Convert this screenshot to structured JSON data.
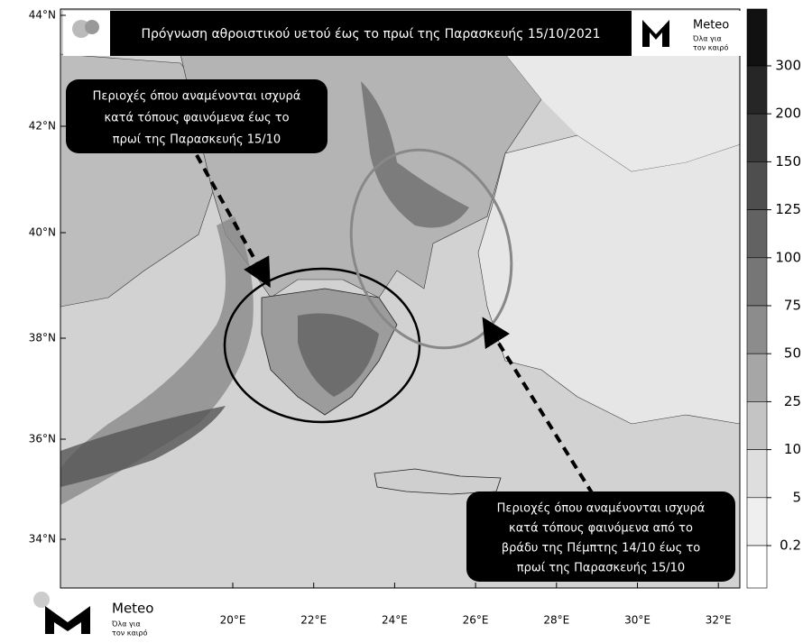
{
  "header": {
    "title": "Πρόγνωση αθροιστικού υετού έως το πρωί της Παρασκευής 15/10/2021",
    "logo": {
      "name": "Meteo",
      "tagline": [
        "Όλα για",
        "τον καιρό"
      ]
    }
  },
  "annotations": [
    {
      "lines": [
        "Περιοχές όπου αναμένονται ισχυρά",
        "κατά τόπους φαινόμενα έως το",
        "πρωί της Παρασκευής 15/10"
      ]
    },
    {
      "lines": [
        "Περιοχές όπου αναμένονται ισχυρά",
        "κατά τόπους φαινόμενα  από το",
        "βράδυ της Πέμπτης 14/10 έως το",
        "πρωί της Παρασκευής 15/10"
      ]
    }
  ],
  "axes": {
    "lat_labels": [
      "44°N",
      "42°N",
      "40°N",
      "38°N",
      "36°N",
      "34°N"
    ],
    "lon_labels": [
      "20°E",
      "22°E",
      "24°E",
      "26°E",
      "28°E",
      "30°E",
      "32°E"
    ]
  },
  "legend": {
    "levels": [
      300,
      200,
      150,
      125,
      100,
      75,
      50,
      25,
      10,
      5,
      0.2
    ],
    "colors": [
      "#111111",
      "#262626",
      "#3a3a3a",
      "#4e4e4e",
      "#626262",
      "#767676",
      "#8c8c8c",
      "#a6a6a6",
      "#c4c4c4",
      "#dedede",
      "#efefef",
      "#ffffff"
    ]
  },
  "footer_logo": {
    "name": "Meteo",
    "tagline": [
      "Όλα για",
      "τον καιρό"
    ]
  }
}
